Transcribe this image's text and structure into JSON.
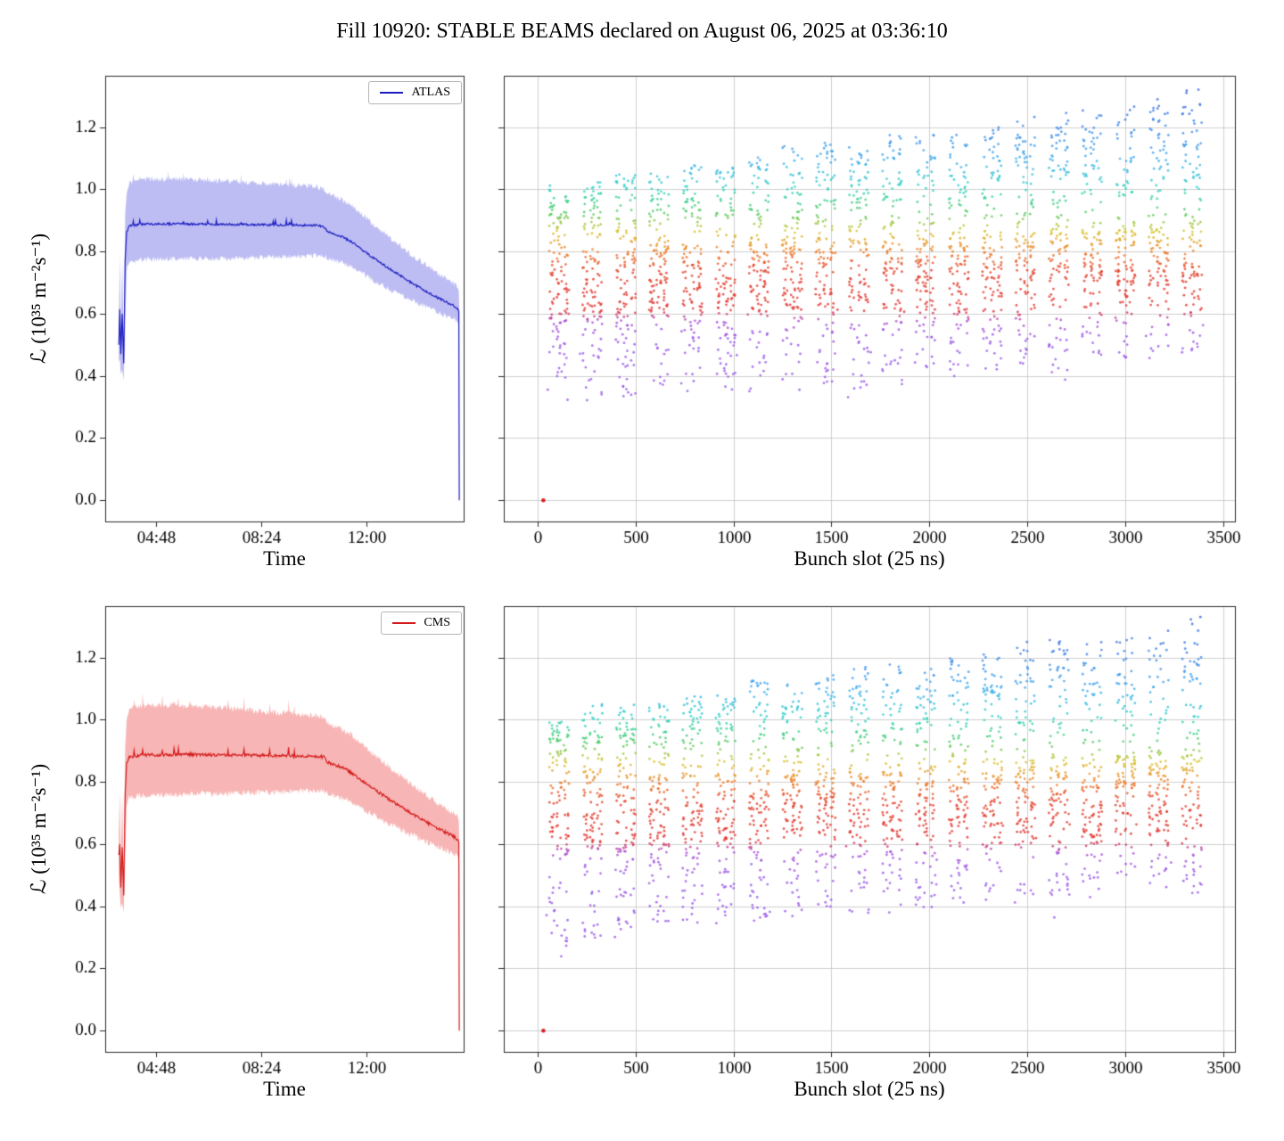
{
  "title": "Fill 10920: STABLE BEAMS declared on August 06, 2025 at 03:36:10",
  "chart_data": [
    {
      "id": "atlas-vs-time",
      "type": "line",
      "legend_label": "ATLAS",
      "xlabel": "Time",
      "ylabel": "ℒ (10³⁵ m⁻²s⁻¹)",
      "line_color": "#1b1bc0",
      "band_color": "rgba(90,90,225,0.40)",
      "xlim": [
        183,
        920
      ],
      "ylim": [
        -0.068,
        1.365
      ],
      "grid": false,
      "x_ticks": [
        {
          "value": 288,
          "label": "04:48"
        },
        {
          "value": 504,
          "label": "08:24"
        },
        {
          "value": 720,
          "label": "12:00"
        }
      ],
      "y_ticks": [
        {
          "value": 0.0,
          "label": "0.0"
        },
        {
          "value": 0.2,
          "label": "0.2"
        },
        {
          "value": 0.4,
          "label": "0.4"
        },
        {
          "value": 0.6,
          "label": "0.6"
        },
        {
          "value": 0.8,
          "label": "0.8"
        },
        {
          "value": 1.0,
          "label": "1.0"
        },
        {
          "value": 1.2,
          "label": "1.2"
        }
      ],
      "noise": {
        "line": 0.0035,
        "band": 0.009,
        "spikes": 0.012,
        "seed": 3
      },
      "series": [
        [
          211,
          0.5,
          0.445,
          0.565
        ],
        [
          213,
          0.615,
          0.455,
          0.79
        ],
        [
          215,
          0.47,
          0.405,
          0.55
        ],
        [
          218,
          0.6,
          0.42,
          0.77
        ],
        [
          221,
          0.44,
          0.385,
          0.5
        ],
        [
          224,
          0.77,
          0.56,
          0.92
        ],
        [
          227,
          0.862,
          0.745,
          0.985
        ],
        [
          232,
          0.882,
          0.768,
          1.022
        ],
        [
          260,
          0.888,
          0.773,
          1.032
        ],
        [
          320,
          0.889,
          0.776,
          1.033
        ],
        [
          380,
          0.888,
          0.777,
          1.03
        ],
        [
          440,
          0.887,
          0.778,
          1.026
        ],
        [
          500,
          0.886,
          0.78,
          1.02
        ],
        [
          560,
          0.885,
          0.783,
          1.014
        ],
        [
          620,
          0.884,
          0.787,
          1.008
        ],
        [
          633,
          0.88,
          0.788,
          1.002
        ],
        [
          640,
          0.865,
          0.778,
          0.988
        ],
        [
          655,
          0.856,
          0.77,
          0.978
        ],
        [
          672,
          0.846,
          0.762,
          0.965
        ],
        [
          690,
          0.83,
          0.75,
          0.948
        ],
        [
          710,
          0.806,
          0.73,
          0.92
        ],
        [
          725,
          0.79,
          0.716,
          0.9
        ],
        [
          745,
          0.768,
          0.698,
          0.873
        ],
        [
          765,
          0.747,
          0.681,
          0.848
        ],
        [
          785,
          0.727,
          0.665,
          0.823
        ],
        [
          805,
          0.707,
          0.649,
          0.799
        ],
        [
          825,
          0.688,
          0.634,
          0.775
        ],
        [
          845,
          0.67,
          0.62,
          0.753
        ],
        [
          865,
          0.653,
          0.606,
          0.731
        ],
        [
          885,
          0.637,
          0.592,
          0.711
        ],
        [
          900,
          0.625,
          0.581,
          0.696
        ],
        [
          908,
          0.616,
          0.572,
          0.684
        ],
        [
          910,
          0.607,
          0.56,
          0.672
        ],
        [
          911,
          0.0,
          0.0,
          0.615
        ]
      ]
    },
    {
      "id": "atlas-vs-bunch-slot",
      "type": "scatter",
      "xlabel": "Bunch slot (25 ns)",
      "xlim": [
        -172,
        3560
      ],
      "ylim": [
        -0.068,
        1.365
      ],
      "grid": true,
      "x_ticks": [
        {
          "value": 0,
          "label": "0"
        },
        {
          "value": 500,
          "label": "500"
        },
        {
          "value": 1000,
          "label": "1000"
        },
        {
          "value": 1500,
          "label": "1500"
        },
        {
          "value": 2000,
          "label": "2000"
        },
        {
          "value": 2500,
          "label": "2500"
        },
        {
          "value": 3000,
          "label": "3000"
        },
        {
          "value": 3500,
          "label": "3500"
        }
      ],
      "y_ticks": [
        {
          "value": 0.0
        },
        {
          "value": 0.2
        },
        {
          "value": 0.4
        },
        {
          "value": 0.6
        },
        {
          "value": 0.8
        },
        {
          "value": 1.0
        },
        {
          "value": 1.2
        }
      ],
      "y_tick_labels": false,
      "scatter": {
        "seed": 11,
        "trains": 20,
        "first_slot": 60,
        "pitch": 170,
        "sub_columns": 3,
        "sub_pitch": 37,
        "sub_width": 27,
        "points_per_train": 122,
        "y_top_start": 1.02,
        "y_top_end": 1.29,
        "y_bottom_start": 0.31,
        "y_bottom_end": 0.47,
        "red_low_start": 0.575,
        "red_low_end": 0.7,
        "red_high_start": 0.8,
        "red_high_end": 0.905,
        "weights": {
          "low": 0.2,
          "mid": 0.42,
          "high": 0.38
        },
        "point_radius": 1.4,
        "alpha": 0.8
      },
      "colormap": [
        [
          0.2,
          "#9b59e6"
        ],
        [
          0.5,
          "#9757e8"
        ],
        [
          0.575,
          "#a94fd6"
        ],
        [
          0.61,
          "#e23333"
        ],
        [
          0.74,
          "#e2402a"
        ],
        [
          0.8,
          "#ee7e28"
        ],
        [
          0.865,
          "#d9c32b"
        ],
        [
          0.925,
          "#4ecb62"
        ],
        [
          1.005,
          "#2ed3c4"
        ],
        [
          1.1,
          "#3fa9ee"
        ],
        [
          1.33,
          "#3b5fe0"
        ]
      ],
      "outlier": {
        "x": 30,
        "y": 0.0,
        "color": "#d42020"
      }
    },
    {
      "id": "cms-vs-time",
      "type": "line",
      "legend_label": "CMS",
      "xlabel": "Time",
      "ylabel": "ℒ (10³⁵ m⁻²s⁻¹)",
      "line_color": "#d41a1a",
      "band_color": "rgba(235,70,70,0.40)",
      "xlim": [
        183,
        920
      ],
      "ylim": [
        -0.068,
        1.365
      ],
      "grid": false,
      "x_ticks": [
        {
          "value": 288,
          "label": "04:48"
        },
        {
          "value": 504,
          "label": "08:24"
        },
        {
          "value": 720,
          "label": "12:00"
        }
      ],
      "y_ticks": [
        {
          "value": 0.0,
          "label": "0.0"
        },
        {
          "value": 0.2,
          "label": "0.2"
        },
        {
          "value": 0.4,
          "label": "0.4"
        },
        {
          "value": 0.6,
          "label": "0.6"
        },
        {
          "value": 0.8,
          "label": "0.8"
        },
        {
          "value": 1.0,
          "label": "1.0"
        },
        {
          "value": 1.2,
          "label": "1.2"
        }
      ],
      "noise": {
        "line": 0.005,
        "band": 0.01,
        "spikes": 0.022,
        "seed": 17
      },
      "series": [
        [
          211,
          0.565,
          0.5,
          0.635
        ],
        [
          213,
          0.6,
          0.44,
          0.77
        ],
        [
          215,
          0.46,
          0.395,
          0.545
        ],
        [
          218,
          0.59,
          0.41,
          0.755
        ],
        [
          221,
          0.435,
          0.38,
          0.5
        ],
        [
          224,
          0.76,
          0.55,
          0.91
        ],
        [
          227,
          0.86,
          0.73,
          0.995
        ],
        [
          232,
          0.88,
          0.752,
          1.035
        ],
        [
          260,
          0.886,
          0.757,
          1.045
        ],
        [
          320,
          0.888,
          0.76,
          1.047
        ],
        [
          380,
          0.887,
          0.762,
          1.042
        ],
        [
          440,
          0.886,
          0.763,
          1.036
        ],
        [
          500,
          0.885,
          0.765,
          1.028
        ],
        [
          560,
          0.884,
          0.768,
          1.02
        ],
        [
          620,
          0.883,
          0.772,
          1.012
        ],
        [
          633,
          0.879,
          0.773,
          1.005
        ],
        [
          640,
          0.864,
          0.763,
          0.99
        ],
        [
          655,
          0.855,
          0.755,
          0.98
        ],
        [
          672,
          0.845,
          0.747,
          0.967
        ],
        [
          690,
          0.829,
          0.735,
          0.95
        ],
        [
          710,
          0.805,
          0.716,
          0.922
        ],
        [
          725,
          0.789,
          0.702,
          0.902
        ],
        [
          745,
          0.767,
          0.684,
          0.875
        ],
        [
          765,
          0.746,
          0.667,
          0.85
        ],
        [
          785,
          0.726,
          0.651,
          0.825
        ],
        [
          805,
          0.706,
          0.636,
          0.801
        ],
        [
          825,
          0.687,
          0.621,
          0.777
        ],
        [
          845,
          0.669,
          0.607,
          0.755
        ],
        [
          865,
          0.652,
          0.593,
          0.733
        ],
        [
          885,
          0.636,
          0.579,
          0.713
        ],
        [
          900,
          0.624,
          0.568,
          0.698
        ],
        [
          908,
          0.615,
          0.559,
          0.686
        ],
        [
          910,
          0.606,
          0.547,
          0.674
        ],
        [
          911,
          0.0,
          0.0,
          0.614
        ]
      ]
    },
    {
      "id": "cms-vs-bunch-slot",
      "type": "scatter",
      "xlabel": "Bunch slot (25 ns)",
      "xlim": [
        -172,
        3560
      ],
      "ylim": [
        -0.068,
        1.365
      ],
      "grid": true,
      "x_ticks": [
        {
          "value": 0,
          "label": "0"
        },
        {
          "value": 500,
          "label": "500"
        },
        {
          "value": 1000,
          "label": "1000"
        },
        {
          "value": 1500,
          "label": "1500"
        },
        {
          "value": 2000,
          "label": "2000"
        },
        {
          "value": 2500,
          "label": "2500"
        },
        {
          "value": 3000,
          "label": "3000"
        },
        {
          "value": 3500,
          "label": "3500"
        }
      ],
      "y_ticks": [
        {
          "value": 0.0
        },
        {
          "value": 0.2
        },
        {
          "value": 0.4
        },
        {
          "value": 0.6
        },
        {
          "value": 0.8
        },
        {
          "value": 1.0
        },
        {
          "value": 1.2
        }
      ],
      "y_tick_labels": false,
      "scatter": {
        "seed": 23,
        "trains": 20,
        "first_slot": 60,
        "pitch": 170,
        "sub_columns": 3,
        "sub_pitch": 37,
        "sub_width": 27,
        "points_per_train": 122,
        "y_top_start": 1.02,
        "y_top_end": 1.3,
        "y_bottom_start": 0.3,
        "y_bottom_end": 0.46,
        "red_low_start": 0.575,
        "red_low_end": 0.7,
        "red_high_start": 0.8,
        "red_high_end": 0.905,
        "weights": {
          "low": 0.22,
          "mid": 0.41,
          "high": 0.37
        },
        "point_radius": 1.4,
        "alpha": 0.8
      },
      "colormap": [
        [
          0.2,
          "#9b59e6"
        ],
        [
          0.5,
          "#9757e8"
        ],
        [
          0.575,
          "#a94fd6"
        ],
        [
          0.61,
          "#e23333"
        ],
        [
          0.74,
          "#e2402a"
        ],
        [
          0.8,
          "#ee7e28"
        ],
        [
          0.865,
          "#d9c32b"
        ],
        [
          0.925,
          "#4ecb62"
        ],
        [
          1.005,
          "#2ed3c4"
        ],
        [
          1.1,
          "#3fa9ee"
        ],
        [
          1.33,
          "#3b5fe0"
        ]
      ],
      "outlier": {
        "x": 30,
        "y": 0.0,
        "color": "#d42020"
      }
    }
  ]
}
